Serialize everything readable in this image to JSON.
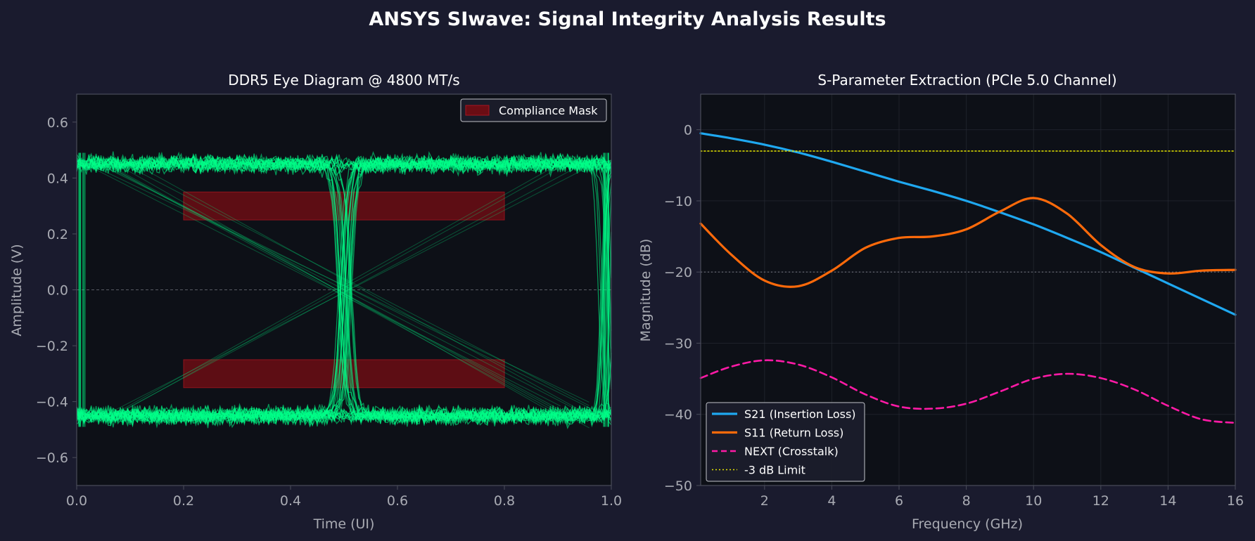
{
  "suptitle": "ANSYS SIwave: Signal Integrity Analysis Results",
  "colors": {
    "figure_bg": "#1a1b2e",
    "axes_bg": "#0d1017",
    "spine": "#4a4d5a",
    "tick_text": "#a9abb3",
    "label_text": "#a9abb3",
    "title_text": "#ffffff",
    "eye_trace": "#00ff88",
    "mask_fill": "#6b0d14",
    "mask_edge": "#a8141f",
    "s21": "#1fa8f0",
    "s11": "#ff6a0a",
    "next": "#ff1aa6",
    "limit": "#e6e600",
    "ref_line": "#6c6f78"
  },
  "chart_data": [
    {
      "type": "line",
      "title": "DDR5 Eye Diagram @ 4800 MT/s",
      "xlabel": "Time (UI)",
      "ylabel": "Amplitude (V)",
      "xlim": [
        0.0,
        1.0
      ],
      "ylim": [
        -0.7,
        0.7
      ],
      "xticks": [
        "0.0",
        "0.2",
        "0.4",
        "0.6",
        "0.8",
        "1.0"
      ],
      "xtick_values": [
        0.0,
        0.2,
        0.4,
        0.6,
        0.8,
        1.0
      ],
      "yticks": [
        "0.6",
        "0.4",
        "0.2",
        "0.0",
        "−0.2",
        "−0.4",
        "−0.6"
      ],
      "ytick_values": [
        0.6,
        0.4,
        0.2,
        0.0,
        -0.2,
        -0.4,
        -0.6
      ],
      "high_level": 0.45,
      "low_level": -0.45,
      "noise_amplitude": 0.05,
      "transition_times": [
        0.01,
        0.5,
        0.99
      ],
      "mask": [
        {
          "x": [
            0.2,
            0.8
          ],
          "y": [
            0.25,
            0.35
          ]
        },
        {
          "x": [
            0.2,
            0.8
          ],
          "y": [
            -0.35,
            -0.25
          ]
        }
      ],
      "legend": {
        "entries": [
          "Compliance Mask"
        ],
        "loc": "upper right"
      },
      "reference_line": {
        "y": 0.0,
        "style": "dashed"
      },
      "grid": false
    },
    {
      "type": "line",
      "title": "S-Parameter Extraction (PCIe 5.0 Channel)",
      "xlabel": "Frequency (GHz)",
      "ylabel": "Magnitude (dB)",
      "xlim": [
        0.1,
        16
      ],
      "ylim": [
        -50,
        5
      ],
      "xticks": [
        "2",
        "4",
        "6",
        "8",
        "10",
        "12",
        "14",
        "16"
      ],
      "xtick_values": [
        2,
        4,
        6,
        8,
        10,
        12,
        14,
        16
      ],
      "yticks": [
        "0",
        "−10",
        "−20",
        "−30",
        "−40",
        "−50"
      ],
      "ytick_values": [
        0,
        -10,
        -20,
        -30,
        -40,
        -50
      ],
      "x": [
        0.1,
        1,
        2,
        3,
        4,
        5,
        6,
        7,
        8,
        9,
        10,
        11,
        12,
        13,
        14,
        15,
        16
      ],
      "series": [
        {
          "name": "S21 (Insertion Loss)",
          "style": "solid",
          "values": [
            -0.5,
            -1.2,
            -2.1,
            -3.2,
            -4.5,
            -5.9,
            -7.3,
            -8.6,
            -10.0,
            -11.6,
            -13.3,
            -15.2,
            -17.2,
            -19.4,
            -21.6,
            -23.8,
            -26.0
          ]
        },
        {
          "name": "S11 (Return Loss)",
          "style": "solid",
          "values": [
            -13.2,
            -17.5,
            -21.2,
            -22.0,
            -19.8,
            -16.6,
            -15.2,
            -15.0,
            -14.0,
            -11.5,
            -9.6,
            -11.8,
            -16.2,
            -19.3,
            -20.2,
            -19.8,
            -19.7
          ]
        },
        {
          "name": "NEXT (Crosstalk)",
          "style": "dashed",
          "values": [
            -34.9,
            -33.3,
            -32.4,
            -33.0,
            -34.8,
            -37.2,
            -38.9,
            -39.2,
            -38.5,
            -36.8,
            -35.0,
            -34.3,
            -34.9,
            -36.5,
            -38.8,
            -40.7,
            -41.2
          ]
        },
        {
          "name": "-3 dB Limit",
          "style": "dotted",
          "values": [
            -3,
            -3,
            -3,
            -3,
            -3,
            -3,
            -3,
            -3,
            -3,
            -3,
            -3,
            -3,
            -3,
            -3,
            -3,
            -3,
            -3
          ]
        }
      ],
      "reference_line": {
        "y": -20,
        "style": "dotted"
      },
      "legend": {
        "loc": "lower left"
      },
      "grid": true
    }
  ]
}
